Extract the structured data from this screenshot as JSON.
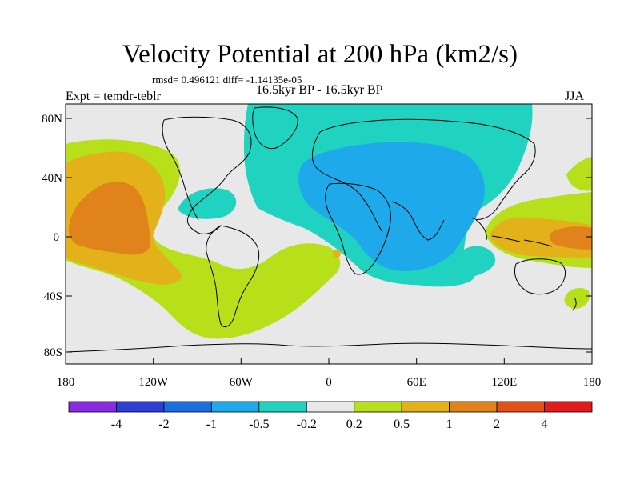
{
  "title": "Velocity Potential at 200 hPa (km2/s)",
  "stats": "rmsd= 0.496121 diff= -1.14135e-05",
  "experiment": "Expt = temdr-teblr",
  "period": "16.5kyr BP - 16.5kyr BP",
  "season": "JJA",
  "y_ticks": [
    "80N",
    "40N",
    "0",
    "40S",
    "80S"
  ],
  "x_ticks": [
    "180",
    "120W",
    "60W",
    "0",
    "60E",
    "120E",
    "180"
  ],
  "colorbar": {
    "labels": [
      "-4",
      "-2",
      "-1",
      "-0.5",
      "-0.2",
      "0.2",
      "0.5",
      "1",
      "2",
      "4"
    ],
    "colors": [
      "#8a2be2",
      "#2f3fd6",
      "#1a6fe0",
      "#1eaaea",
      "#1fd3c0",
      "#e8e8e8",
      "#b7df1a",
      "#e3b21a",
      "#e0831a",
      "#e2511a",
      "#e31a1a"
    ]
  },
  "colors": {
    "background": "#e8e8e8",
    "cyan": "#1fd3c0",
    "blue": "#1eaaea",
    "yellowgreen": "#b7df1a",
    "orange": "#e3b21a",
    "darkorange": "#e0831a"
  }
}
